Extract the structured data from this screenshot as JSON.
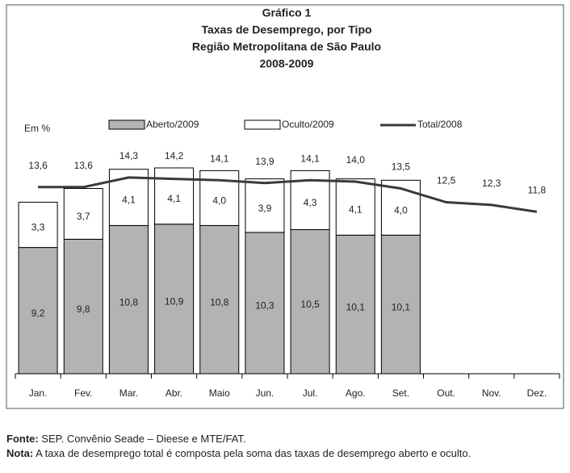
{
  "chart_data": {
    "type": "stacked-bar-line",
    "title": [
      "Gráfico 1",
      "Taxas de Desemprego, por Tipo",
      "Região Metropolitana de São Paulo",
      "2008-2009"
    ],
    "y_label": "Em %",
    "categories": [
      "Jan.",
      "Fev.",
      "Mar.",
      "Abr.",
      "Maio",
      "Jun.",
      "Jul.",
      "Ago.",
      "Set.",
      "Out.",
      "Nov.",
      "Dez."
    ],
    "ylim": [
      0,
      16
    ],
    "series": [
      {
        "name": "Aberto/2009",
        "kind": "bar",
        "color": "#b3b3b3",
        "values": [
          9.2,
          9.8,
          10.8,
          10.9,
          10.8,
          10.3,
          10.5,
          10.1,
          10.1,
          null,
          null,
          null
        ],
        "value_labels": [
          "9,2",
          "9,8",
          "10,8",
          "10,9",
          "10,8",
          "10,3",
          "10,5",
          "10,1",
          "10,1",
          null,
          null,
          null
        ]
      },
      {
        "name": "Oculto/2009",
        "kind": "bar",
        "color": "#ffffff",
        "values": [
          3.3,
          3.7,
          4.1,
          4.1,
          4.0,
          3.9,
          4.3,
          4.1,
          4.0,
          null,
          null,
          null
        ],
        "value_labels": [
          "3,3",
          "3,7",
          "4,1",
          "4,1",
          "4,0",
          "3,9",
          "4,3",
          "4,1",
          "4,0",
          null,
          null,
          null
        ]
      },
      {
        "name": "Total/2008",
        "kind": "line",
        "color": "#3a3a3a",
        "values": [
          13.6,
          13.6,
          14.3,
          14.2,
          14.1,
          13.9,
          14.1,
          14.0,
          13.5,
          12.5,
          12.3,
          11.8
        ],
        "value_labels": [
          "13,6",
          "13,6",
          "14,3",
          "14,2",
          "14,1",
          "13,9",
          "14,1",
          "14,0",
          "13,5",
          "12,5",
          "12,3",
          "11,8"
        ]
      }
    ]
  },
  "footer": {
    "source_label": "Fonte:",
    "source_text": " SEP. Convênio Seade – Dieese e MTE/FAT.",
    "note_label": "Nota:",
    "note_text": " A taxa de desemprego total é composta pela soma das taxas de desemprego aberto e oculto."
  }
}
